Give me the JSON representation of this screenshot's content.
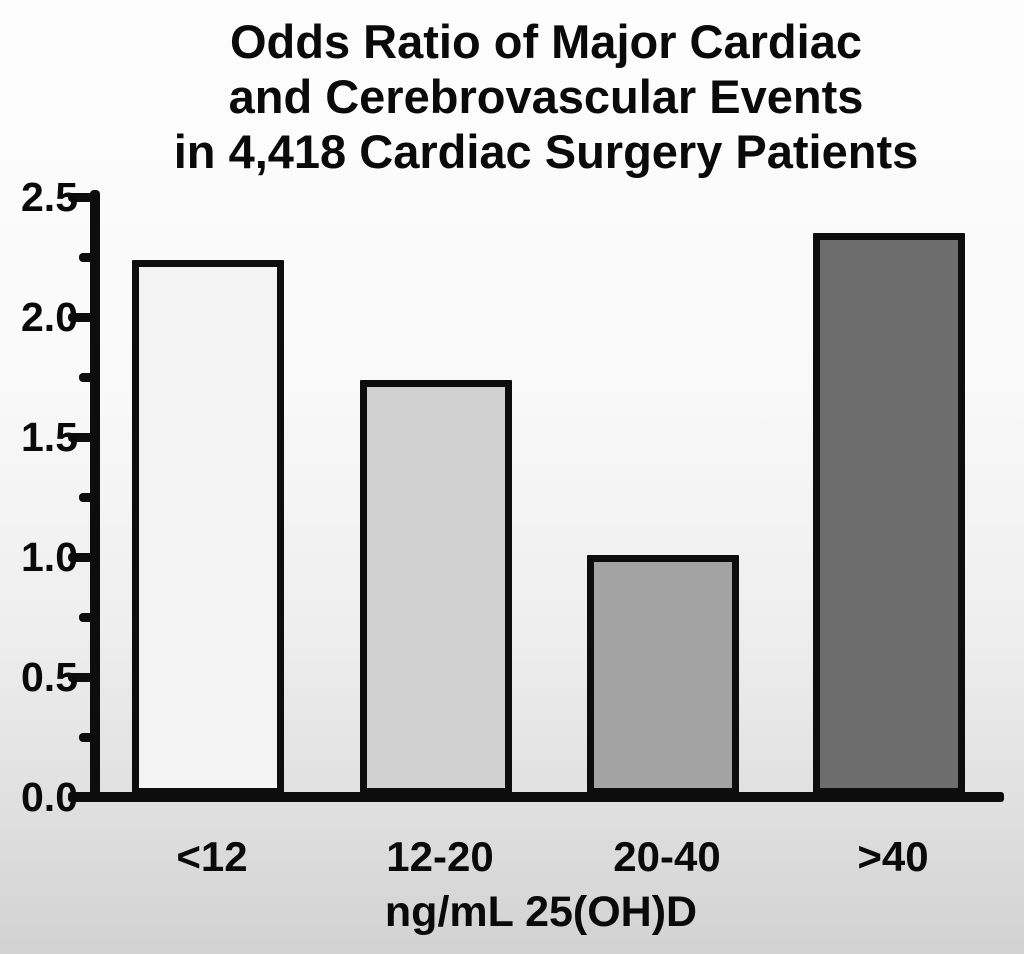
{
  "chart_data": {
    "type": "bar",
    "title": "Odds Ratio of Major Cardiac\nand Cerebrovascular Events\nin 4,418 Cardiac Surgery Patients",
    "categories": [
      "<12",
      "12-20",
      "20-40",
      ">40"
    ],
    "values": [
      2.23,
      1.73,
      1.0,
      2.34
    ],
    "bar_colors": [
      "#f4f4f4",
      "#d1d1d1",
      "#a3a3a3",
      "#6d6d6d"
    ],
    "xlabel": "ng/mL 25(OH)D",
    "ylabel": "",
    "ylim": [
      0.0,
      2.5
    ],
    "ytick_step": 0.5,
    "ytick_labels": [
      "0.0",
      "0.5",
      "1.0",
      "1.5",
      "2.0",
      "2.5"
    ],
    "yminor_step": 0.25,
    "grid": false,
    "legend": null,
    "colors": {
      "axis": "#0d0d0d",
      "text": "#0a0a0a",
      "background_top": "#fdfdfd",
      "background_bottom": "#d2d2d2"
    }
  }
}
